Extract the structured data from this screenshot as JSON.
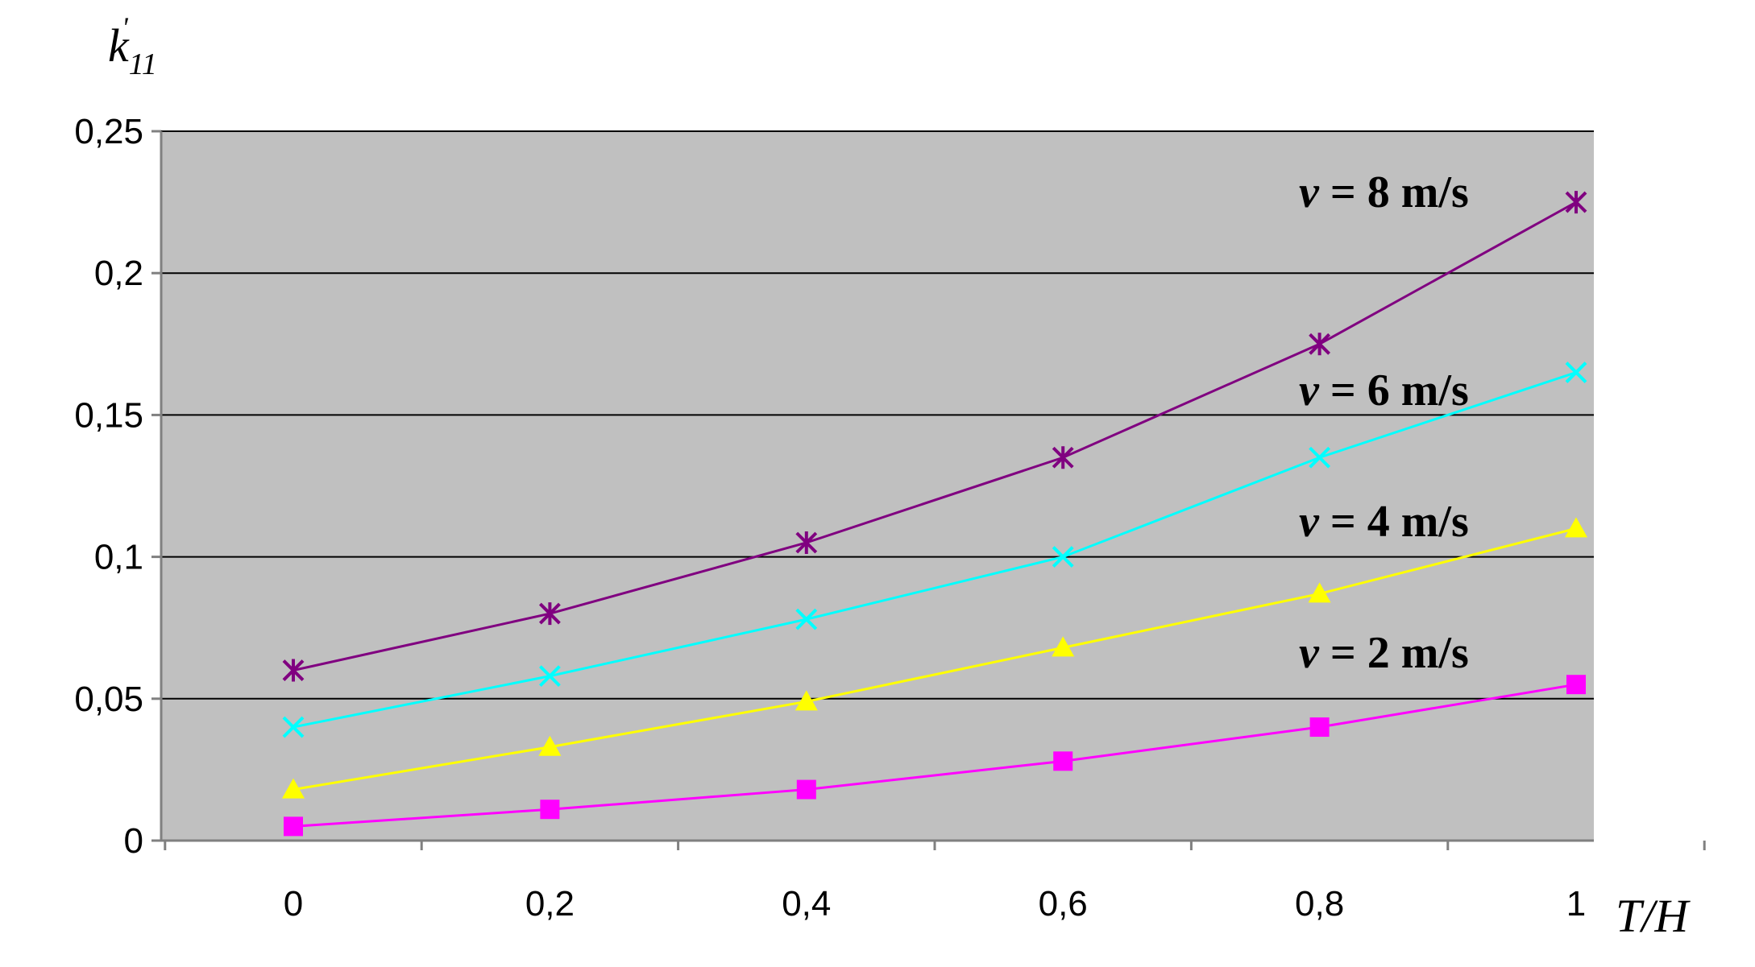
{
  "chart_data": {
    "type": "line",
    "title": "",
    "xlabel": "T/H",
    "ylabel": "k'11",
    "ylabel_parts": {
      "base": "k",
      "sub": "11",
      "sup": "'"
    },
    "x": [
      0,
      0.2,
      0.4,
      0.6,
      0.8,
      1
    ],
    "x_tick_labels": [
      "0",
      "0,2",
      "0,4",
      "0,6",
      "0,8",
      "1"
    ],
    "y_tick_values": [
      0,
      0.05,
      0.1,
      0.15,
      0.2,
      0.25
    ],
    "y_tick_labels": [
      "0",
      "0,05",
      "0,1",
      "0,15",
      "0,2",
      "0,25"
    ],
    "ylim": [
      0,
      0.25
    ],
    "grid": true,
    "background_color": "#c0c0c0",
    "series": [
      {
        "name": "v = 8 m/s",
        "label_var": "v",
        "label_rest": " = 8 m/s",
        "color": "#800080",
        "marker": "asterisk",
        "values": [
          0.06,
          0.08,
          0.105,
          0.135,
          0.175,
          0.225
        ]
      },
      {
        "name": "v = 6 m/s",
        "label_var": "v",
        "label_rest": " = 6 m/s",
        "color": "#00ffff",
        "marker": "x",
        "values": [
          0.04,
          0.058,
          0.078,
          0.1,
          0.135,
          0.165
        ]
      },
      {
        "name": "v = 4 m/s",
        "label_var": "v",
        "label_rest": " = 4 m/s",
        "color": "#ffff00",
        "marker": "triangle",
        "values": [
          0.018,
          0.033,
          0.049,
          0.068,
          0.087,
          0.11
        ]
      },
      {
        "name": "v = 2 m/s",
        "label_var": "v",
        "label_rest": " = 2 m/s",
        "color": "#ff00ff",
        "marker": "square",
        "values": [
          0.005,
          0.011,
          0.018,
          0.028,
          0.04,
          0.055
        ]
      }
    ]
  }
}
